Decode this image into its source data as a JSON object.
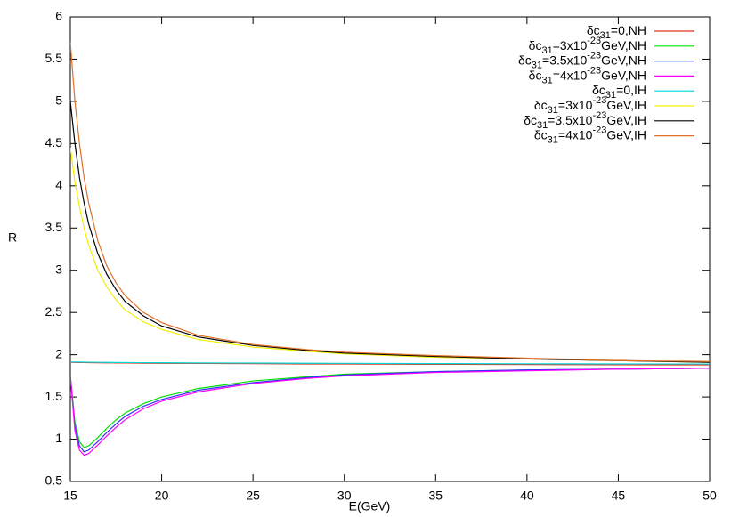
{
  "chart_data": {
    "type": "line",
    "xlabel": "E(GeV)",
    "ylabel": "R",
    "x": [
      15,
      15.25,
      15.5,
      15.75,
      16,
      16.5,
      17,
      17.5,
      18,
      19,
      20,
      22,
      25,
      28,
      30,
      35,
      40,
      45,
      50
    ],
    "xlim": [
      15,
      50
    ],
    "xticks": [
      15,
      20,
      25,
      30,
      35,
      40,
      45,
      50
    ],
    "ylim": [
      0.5,
      6
    ],
    "yticks": [
      0.5,
      1,
      1.5,
      2,
      2.5,
      3,
      3.5,
      4,
      4.5,
      5,
      5.5,
      6
    ],
    "legend": "upper right",
    "series": [
      {
        "name": "δc31=0,NH",
        "color": "#e03020",
        "values": [
          1.91,
          1.909,
          1.908,
          1.907,
          1.906,
          1.905,
          1.904,
          1.903,
          1.902,
          1.9,
          1.899,
          1.897,
          1.894,
          1.891,
          1.89,
          1.887,
          1.884,
          1.882,
          1.88
        ]
      },
      {
        "name": "δc31=3x10-23GeV,NH",
        "color": "#00e000",
        "values": [
          1.75,
          1.2,
          0.97,
          0.9,
          0.92,
          1.02,
          1.13,
          1.23,
          1.31,
          1.42,
          1.5,
          1.6,
          1.69,
          1.74,
          1.77,
          1.8,
          1.82,
          1.83,
          1.84
        ]
      },
      {
        "name": "δc31=3.5x10-23GeV,NH",
        "color": "#3030ff",
        "values": [
          1.75,
          1.15,
          0.92,
          0.85,
          0.87,
          0.97,
          1.08,
          1.18,
          1.27,
          1.39,
          1.47,
          1.58,
          1.67,
          1.73,
          1.76,
          1.8,
          1.82,
          1.83,
          1.84
        ]
      },
      {
        "name": "δc31=4x10-23GeV,NH",
        "color": "#ff00ff",
        "values": [
          1.75,
          1.1,
          0.87,
          0.81,
          0.83,
          0.93,
          1.04,
          1.14,
          1.23,
          1.36,
          1.45,
          1.56,
          1.66,
          1.72,
          1.75,
          1.79,
          1.81,
          1.83,
          1.84
        ]
      },
      {
        "name": "δc31=0,IH",
        "color": "#00d8d8",
        "values": [
          1.915,
          1.914,
          1.913,
          1.912,
          1.911,
          1.91,
          1.909,
          1.908,
          1.907,
          1.906,
          1.905,
          1.903,
          1.901,
          1.899,
          1.898,
          1.895,
          1.893,
          1.891,
          1.89
        ]
      },
      {
        "name": "δc31=3x10-23GeV,IH",
        "color": "#f0f000",
        "values": [
          4.45,
          4.05,
          3.75,
          3.5,
          3.3,
          3.0,
          2.8,
          2.65,
          2.53,
          2.39,
          2.3,
          2.18,
          2.09,
          2.04,
          2.01,
          1.97,
          1.95,
          1.93,
          1.91
        ]
      },
      {
        "name": "δc31=3.5x10-23GeV,IH",
        "color": "#000000",
        "values": [
          5.0,
          4.5,
          4.1,
          3.8,
          3.55,
          3.2,
          2.95,
          2.77,
          2.63,
          2.46,
          2.34,
          2.21,
          2.11,
          2.05,
          2.02,
          1.98,
          1.95,
          1.93,
          1.91
        ]
      },
      {
        "name": "δc31=4x10-23GeV,IH",
        "color": "#e0702a",
        "values": [
          5.7,
          5.0,
          4.5,
          4.1,
          3.8,
          3.35,
          3.05,
          2.85,
          2.7,
          2.5,
          2.38,
          2.23,
          2.12,
          2.06,
          2.03,
          1.99,
          1.96,
          1.93,
          1.92
        ]
      }
    ]
  }
}
